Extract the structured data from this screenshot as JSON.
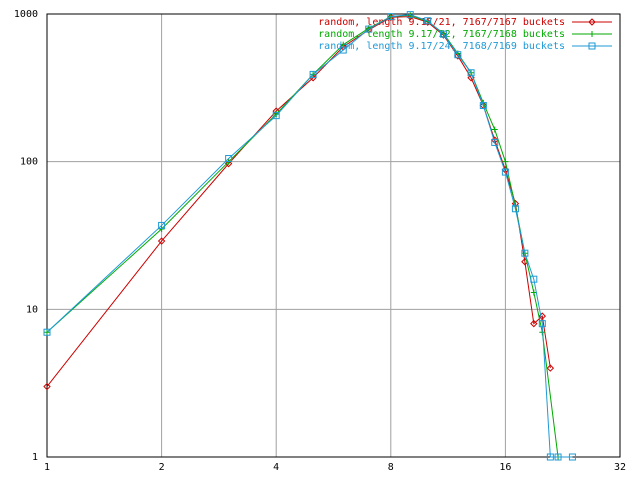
{
  "chart_data": {
    "type": "line",
    "xscale": "log",
    "yscale": "log",
    "grid": true,
    "legend": "top-right",
    "xlim": [
      1,
      32
    ],
    "ylim": [
      1,
      1000
    ],
    "xticks": [
      1,
      2,
      4,
      8,
      16,
      32
    ],
    "yticks": [
      1,
      10,
      100,
      1000
    ],
    "series": [
      {
        "name": "random, length 9.17/21, 7167/7167 buckets",
        "color": "#cc0000",
        "marker": "diamond",
        "x": [
          1,
          2,
          3,
          4,
          5,
          6,
          7,
          8,
          9,
          10,
          11,
          12,
          13,
          14,
          15,
          16,
          17,
          18,
          19,
          20,
          21
        ],
        "values": [
          3,
          29,
          97,
          220,
          370,
          600,
          780,
          950,
          960,
          880,
          720,
          520,
          370,
          240,
          140,
          88,
          52,
          21,
          8,
          9,
          4
        ]
      },
      {
        "name": "random, length 9.17/22, 7167/7168 buckets",
        "color": "#00aa00",
        "marker": "plus",
        "x": [
          1,
          2,
          3,
          4,
          5,
          6,
          7,
          8,
          9,
          10,
          11,
          12,
          13,
          14,
          15,
          16,
          17,
          18,
          19,
          20,
          22
        ],
        "values": [
          7,
          35,
          100,
          210,
          390,
          620,
          800,
          960,
          980,
          890,
          740,
          540,
          400,
          250,
          165,
          100,
          50,
          24,
          13,
          7,
          1
        ]
      },
      {
        "name": "random, length 9.17/24, 7168/7169 buckets",
        "color": "#1e9ad6",
        "marker": "square",
        "x": [
          1,
          2,
          3,
          4,
          5,
          6,
          7,
          8,
          9,
          10,
          11,
          12,
          13,
          14,
          15,
          16,
          17,
          18,
          19,
          20,
          21,
          22,
          24
        ],
        "values": [
          7,
          37,
          105,
          205,
          390,
          570,
          790,
          960,
          990,
          900,
          730,
          530,
          400,
          240,
          135,
          85,
          48,
          24,
          16,
          8,
          1,
          1,
          1
        ]
      }
    ]
  }
}
